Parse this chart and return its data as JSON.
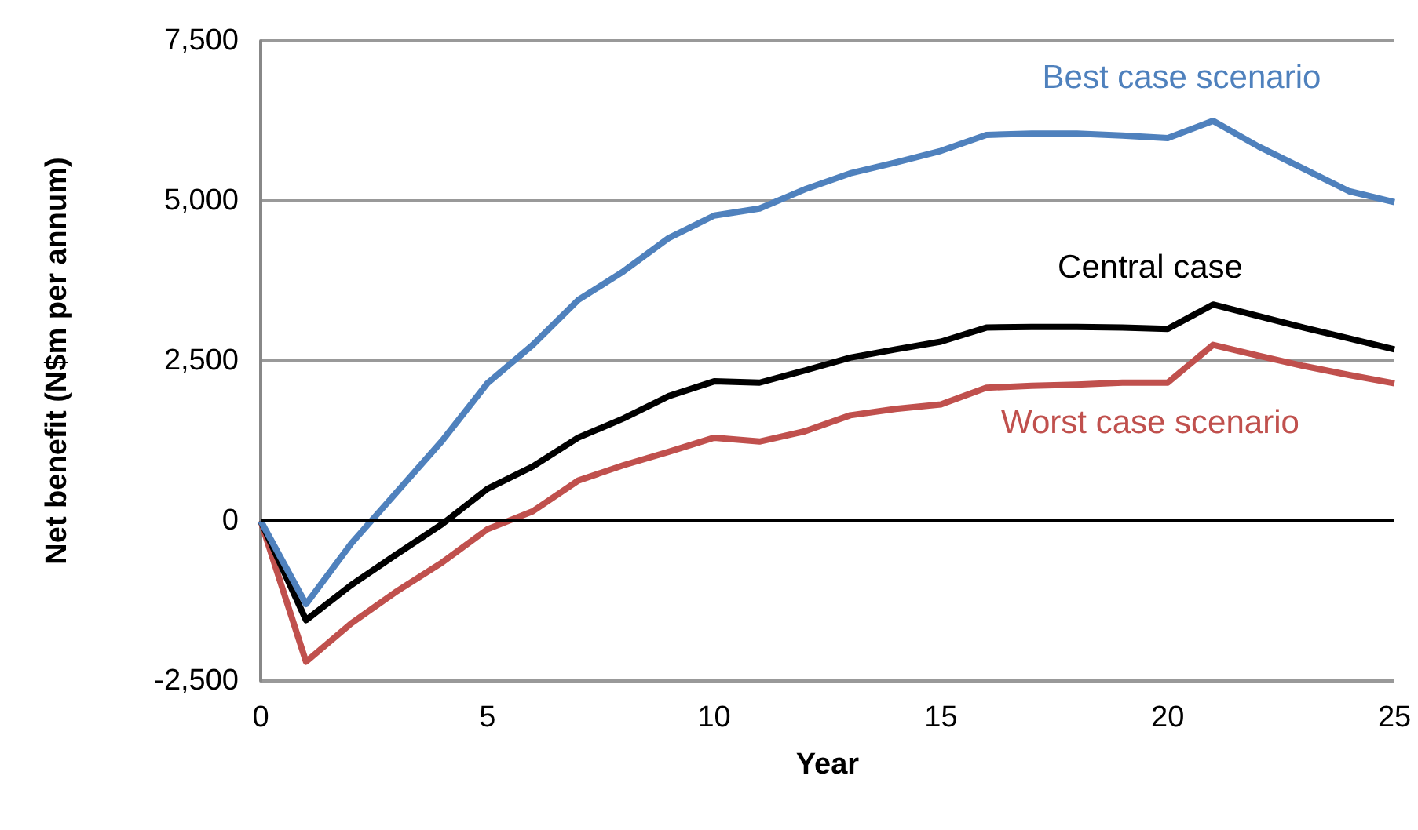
{
  "chart_data": {
    "type": "line",
    "xlabel": "Year",
    "ylabel": "Net benefit (N$m per annum)",
    "x": [
      0,
      1,
      2,
      3,
      4,
      5,
      6,
      7,
      8,
      9,
      10,
      11,
      12,
      13,
      14,
      15,
      16,
      17,
      18,
      19,
      20,
      21,
      22,
      23,
      24,
      25
    ],
    "series": [
      {
        "name": "Best case scenario",
        "color": "#4f81bd",
        "values": [
          0,
          -1300,
          -350,
          450,
          1250,
          2150,
          2750,
          3450,
          3900,
          4420,
          4770,
          4880,
          5180,
          5430,
          5600,
          5780,
          6030,
          6050,
          6050,
          6020,
          5980,
          6250,
          5850,
          5500,
          5150,
          4980
        ]
      },
      {
        "name": "Central case",
        "color": "#000000",
        "values": [
          0,
          -1550,
          -1000,
          -520,
          -50,
          500,
          850,
          1300,
          1600,
          1950,
          2180,
          2160,
          2350,
          2550,
          2680,
          2800,
          3020,
          3030,
          3030,
          3020,
          3000,
          3380,
          3200,
          3020,
          2850,
          2680
        ]
      },
      {
        "name": "Worst case scenario",
        "color": "#c0504d",
        "values": [
          0,
          -2200,
          -1600,
          -1100,
          -650,
          -130,
          150,
          630,
          870,
          1080,
          1300,
          1240,
          1400,
          1650,
          1750,
          1820,
          2080,
          2110,
          2130,
          2160,
          2160,
          2750,
          2580,
          2420,
          2280,
          2150
        ]
      }
    ],
    "xlim": [
      0,
      25
    ],
    "xticks": [
      0,
      5,
      10,
      15,
      20,
      25
    ],
    "ylim": [
      -2500,
      7500
    ],
    "yticks": [
      {
        "value": -2500,
        "label": "-2,500"
      },
      0,
      {
        "value": 2500,
        "label": "2,500"
      },
      {
        "value": 5000,
        "label": "5,000"
      },
      {
        "value": 7500,
        "label": "7,500"
      }
    ],
    "grid": "y",
    "legend": false,
    "marker": "none",
    "line_style": "solid"
  }
}
